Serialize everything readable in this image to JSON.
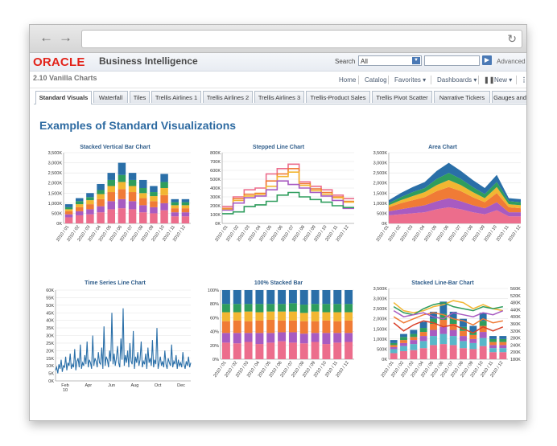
{
  "header": {
    "logo": "ORACLE",
    "app_title": "Business Intelligence",
    "search_label": "Search",
    "search_scope": "All",
    "advanced": "Advanced"
  },
  "dashboard": {
    "title": "2.10 Vanilla Charts",
    "menu": [
      "Home",
      "Catalog",
      "Favorites ▾",
      "Dashboards ▾",
      "New ▾"
    ]
  },
  "tabs": [
    "Standard Visuals",
    "Waterfall",
    "Tiles",
    "Trellis Airlines 1",
    "Trellis Airlines 2",
    "Trellis Airlines 3",
    "Trellis-Product Sales",
    "Trellis Pivot Scatter",
    "Narrative Tickers",
    "Gauges and"
  ],
  "page": {
    "title": "Examples of Standard Visualizations"
  },
  "colors": {
    "blue": "#2a6fa8",
    "green": "#2f9d5d",
    "yellow": "#f2b632",
    "orange": "#f07b36",
    "purple": "#a85bc1",
    "pink": "#ec6d8c",
    "teal": "#58b7c9",
    "red": "#d9412a"
  },
  "chart_data": [
    {
      "type": "bar",
      "title": "Stacked Vertical Bar Chart",
      "categories": [
        "2010 / 01",
        "2010 / 02",
        "2010 / 03",
        "2010 / 04",
        "2010 / 05",
        "2010 / 06",
        "2010 / 07",
        "2010 / 08",
        "2010 / 09",
        "2010 / 10",
        "2010 / 11",
        "2010 / 12"
      ],
      "y_ticks": [
        "0K",
        "500K",
        "1,000K",
        "1,500K",
        "2,000K",
        "2,500K",
        "3,000K",
        "3,500K"
      ],
      "ylim": [
        0,
        3500
      ],
      "series": [
        {
          "color": "pink",
          "values": [
            300,
            400,
            450,
            550,
            700,
            750,
            700,
            550,
            500,
            650,
            350,
            350
          ]
        },
        {
          "color": "purple",
          "values": [
            150,
            200,
            250,
            300,
            400,
            450,
            400,
            350,
            300,
            350,
            200,
            200
          ]
        },
        {
          "color": "orange",
          "values": [
            150,
            200,
            250,
            350,
            450,
            500,
            450,
            350,
            300,
            400,
            200,
            200
          ]
        },
        {
          "color": "yellow",
          "values": [
            100,
            150,
            200,
            250,
            300,
            350,
            300,
            250,
            250,
            350,
            150,
            150
          ]
        },
        {
          "color": "green",
          "values": [
            100,
            150,
            150,
            200,
            300,
            350,
            300,
            250,
            200,
            300,
            150,
            150
          ]
        },
        {
          "color": "blue",
          "values": [
            150,
            150,
            200,
            300,
            350,
            600,
            350,
            400,
            300,
            400,
            150,
            150
          ]
        }
      ]
    },
    {
      "type": "line",
      "title": "Stepped Line Chart",
      "categories": [
        "2010 / 01",
        "2010 / 02",
        "2010 / 03",
        "2010 / 04",
        "2010 / 05",
        "2010 / 06",
        "2010 / 07",
        "2010 / 08",
        "2010 / 09",
        "2010 / 10",
        "2010 / 11",
        "2010 / 12"
      ],
      "y_ticks": [
        "0K",
        "100K",
        "200K",
        "300K",
        "400K",
        "500K",
        "600K",
        "700K",
        "800K"
      ],
      "ylim": [
        0,
        800
      ],
      "series": [
        {
          "color": "pink",
          "values": [
            190,
            300,
            380,
            400,
            560,
            620,
            670,
            470,
            420,
            380,
            320,
            280
          ]
        },
        {
          "color": "orange",
          "values": [
            170,
            280,
            330,
            340,
            480,
            560,
            620,
            450,
            390,
            350,
            300,
            250
          ]
        },
        {
          "color": "yellow",
          "values": [
            160,
            260,
            310,
            330,
            420,
            530,
            580,
            430,
            370,
            330,
            290,
            240
          ]
        },
        {
          "color": "purple",
          "values": [
            150,
            230,
            290,
            310,
            380,
            480,
            440,
            400,
            350,
            310,
            260,
            170
          ]
        },
        {
          "color": "green",
          "values": [
            110,
            130,
            190,
            210,
            250,
            320,
            350,
            300,
            270,
            240,
            200,
            180
          ]
        }
      ]
    },
    {
      "type": "area",
      "title": "Area Chart",
      "categories": [
        "2010 / 01",
        "2010 / 02",
        "2010 / 03",
        "2010 / 04",
        "2010 / 05",
        "2010 / 06",
        "2010 / 07",
        "2010 / 08",
        "2010 / 09",
        "2010 / 10",
        "2010 / 11",
        "2010 / 12"
      ],
      "y_ticks": [
        "0K",
        "500K",
        "1,000K",
        "1,500K",
        "2,000K",
        "2,500K",
        "3,000K",
        "3,500K"
      ],
      "ylim": [
        0,
        3500
      ],
      "series": [
        {
          "color": "pink",
          "values": [
            400,
            450,
            500,
            550,
            700,
            800,
            700,
            550,
            450,
            650,
            350,
            350
          ]
        },
        {
          "color": "purple",
          "values": [
            200,
            250,
            300,
            350,
            400,
            450,
            400,
            350,
            300,
            400,
            200,
            200
          ]
        },
        {
          "color": "orange",
          "values": [
            200,
            300,
            350,
            400,
            500,
            550,
            500,
            400,
            300,
            450,
            250,
            200
          ]
        },
        {
          "color": "yellow",
          "values": [
            100,
            150,
            200,
            250,
            300,
            350,
            300,
            250,
            200,
            300,
            150,
            150
          ]
        },
        {
          "color": "green",
          "values": [
            100,
            150,
            200,
            200,
            300,
            350,
            300,
            250,
            200,
            250,
            150,
            150
          ]
        },
        {
          "color": "blue",
          "values": [
            150,
            200,
            250,
            300,
            400,
            500,
            400,
            350,
            300,
            350,
            150,
            150
          ]
        }
      ]
    },
    {
      "type": "line",
      "title": "Time Series Line Chart",
      "x_ticks": [
        "Feb\n10",
        "Apr",
        "Jun",
        "Aug",
        "Oct",
        "Dec"
      ],
      "y_ticks": [
        "0K",
        "5K",
        "10K",
        "15K",
        "20K",
        "25K",
        "30K",
        "35K",
        "40K",
        "45K",
        "50K",
        "55K",
        "60K"
      ],
      "ylim": [
        0,
        60
      ],
      "series": [
        {
          "color": "blue",
          "values": [
            7,
            9,
            5,
            11,
            8,
            14,
            6,
            10,
            9,
            16,
            7,
            12,
            10,
            18,
            8,
            11,
            9,
            21,
            7,
            13,
            15,
            9,
            24,
            8,
            12,
            10,
            17,
            11,
            26,
            9,
            14,
            12,
            8,
            30,
            10,
            15,
            13,
            9,
            19,
            12,
            11,
            22,
            8,
            36,
            10,
            16,
            14,
            9,
            20,
            13,
            45,
            11,
            18,
            10,
            15,
            23,
            12,
            9,
            28,
            14,
            48,
            10,
            17,
            12,
            20,
            9,
            25,
            13,
            11,
            33,
            8,
            16,
            12,
            19,
            10,
            14,
            26,
            9,
            13,
            11,
            18,
            8,
            22,
            12,
            15,
            10,
            27,
            9,
            14,
            11,
            35,
            8,
            12,
            16,
            10,
            13,
            9,
            20,
            11,
            8,
            15,
            12,
            10,
            24,
            9,
            13,
            11,
            17,
            8,
            14,
            10,
            12,
            9,
            19,
            11,
            8,
            13,
            10,
            16,
            9,
            12
          ]
        }
      ]
    },
    {
      "type": "bar",
      "title": "100% Stacked Bar",
      "categories": [
        "2010 / 01",
        "2010 / 02",
        "2010 / 03",
        "2010 / 04",
        "2010 / 05",
        "2010 / 06",
        "2010 / 07",
        "2010 / 08",
        "2010 / 09",
        "2010 / 10",
        "2010 / 11",
        "2010 / 12"
      ],
      "y_ticks": [
        "0%",
        "20%",
        "40%",
        "60%",
        "80%",
        "100%"
      ],
      "ylim": [
        0,
        100
      ],
      "series": [
        {
          "color": "pink",
          "values": [
            24,
            23,
            25,
            22,
            24,
            26,
            24,
            23,
            25,
            22,
            24,
            25
          ]
        },
        {
          "color": "purple",
          "values": [
            14,
            15,
            13,
            16,
            14,
            13,
            15,
            14,
            13,
            16,
            14,
            13
          ]
        },
        {
          "color": "orange",
          "values": [
            17,
            18,
            17,
            18,
            19,
            17,
            17,
            18,
            17,
            18,
            17,
            18
          ]
        },
        {
          "color": "yellow",
          "values": [
            13,
            12,
            14,
            12,
            12,
            13,
            13,
            12,
            14,
            12,
            13,
            12
          ]
        },
        {
          "color": "green",
          "values": [
            12,
            12,
            11,
            12,
            11,
            11,
            12,
            12,
            11,
            12,
            12,
            12
          ]
        },
        {
          "color": "blue",
          "values": [
            20,
            20,
            20,
            20,
            20,
            20,
            19,
            21,
            20,
            20,
            20,
            20
          ]
        }
      ]
    },
    {
      "type": "bar",
      "title": "Stacked Line-Bar Chart",
      "categories": [
        "2010 / 01",
        "2010 / 02",
        "2010 / 03",
        "2010 / 04",
        "2010 / 05",
        "2010 / 06",
        "2010 / 07",
        "2010 / 08",
        "2010 / 09",
        "2010 / 10",
        "2010 / 11",
        "2010 / 12"
      ],
      "y_ticks": [
        "0K",
        "500K",
        "1,000K",
        "1,500K",
        "2,000K",
        "2,500K",
        "3,000K",
        "3,500K"
      ],
      "y2_ticks": [
        "180K",
        "200K",
        "240K",
        "280K",
        "320K",
        "360K",
        "400K",
        "440K",
        "480K",
        "520K",
        "560K"
      ],
      "ylim": [
        0,
        3500
      ],
      "series": [
        {
          "color": "pink",
          "values": [
            300,
            400,
            450,
            550,
            700,
            750,
            700,
            550,
            500,
            650,
            350,
            350
          ]
        },
        {
          "color": "teal",
          "values": [
            200,
            250,
            300,
            350,
            450,
            500,
            450,
            350,
            300,
            400,
            200,
            200
          ]
        },
        {
          "color": "purple",
          "values": [
            100,
            150,
            200,
            250,
            300,
            350,
            300,
            250,
            200,
            300,
            150,
            150
          ]
        },
        {
          "color": "orange",
          "values": [
            100,
            150,
            150,
            200,
            300,
            350,
            300,
            250,
            200,
            300,
            150,
            150
          ]
        },
        {
          "color": "green",
          "values": [
            100,
            150,
            150,
            200,
            250,
            300,
            250,
            200,
            150,
            250,
            150,
            150
          ]
        },
        {
          "color": "blue",
          "values": [
            150,
            150,
            200,
            300,
            350,
            600,
            350,
            400,
            300,
            400,
            150,
            150
          ]
        }
      ],
      "line_series": [
        {
          "color": "yellow",
          "values": [
            2800,
            2400,
            2300,
            2400,
            2600,
            2700,
            2900,
            2800,
            2500,
            2700,
            2500,
            2400
          ]
        },
        {
          "color": "green",
          "values": [
            2600,
            2300,
            2200,
            2500,
            2700,
            2800,
            2600,
            2500,
            2400,
            2600,
            2500,
            2600
          ]
        },
        {
          "color": "orange",
          "values": [
            2100,
            1800,
            2000,
            2200,
            2300,
            2200,
            2000,
            1900,
            1700,
            2000,
            1800,
            1900
          ]
        },
        {
          "color": "red",
          "values": [
            1800,
            1400,
            1700,
            1900,
            1800,
            1600,
            1700,
            1500,
            1300,
            1600,
            1400,
            1600
          ]
        },
        {
          "color": "purple",
          "values": [
            2400,
            2100,
            2200,
            2300,
            2100,
            2000,
            2300,
            2200,
            2100,
            2300,
            2200,
            2400
          ]
        }
      ]
    }
  ]
}
